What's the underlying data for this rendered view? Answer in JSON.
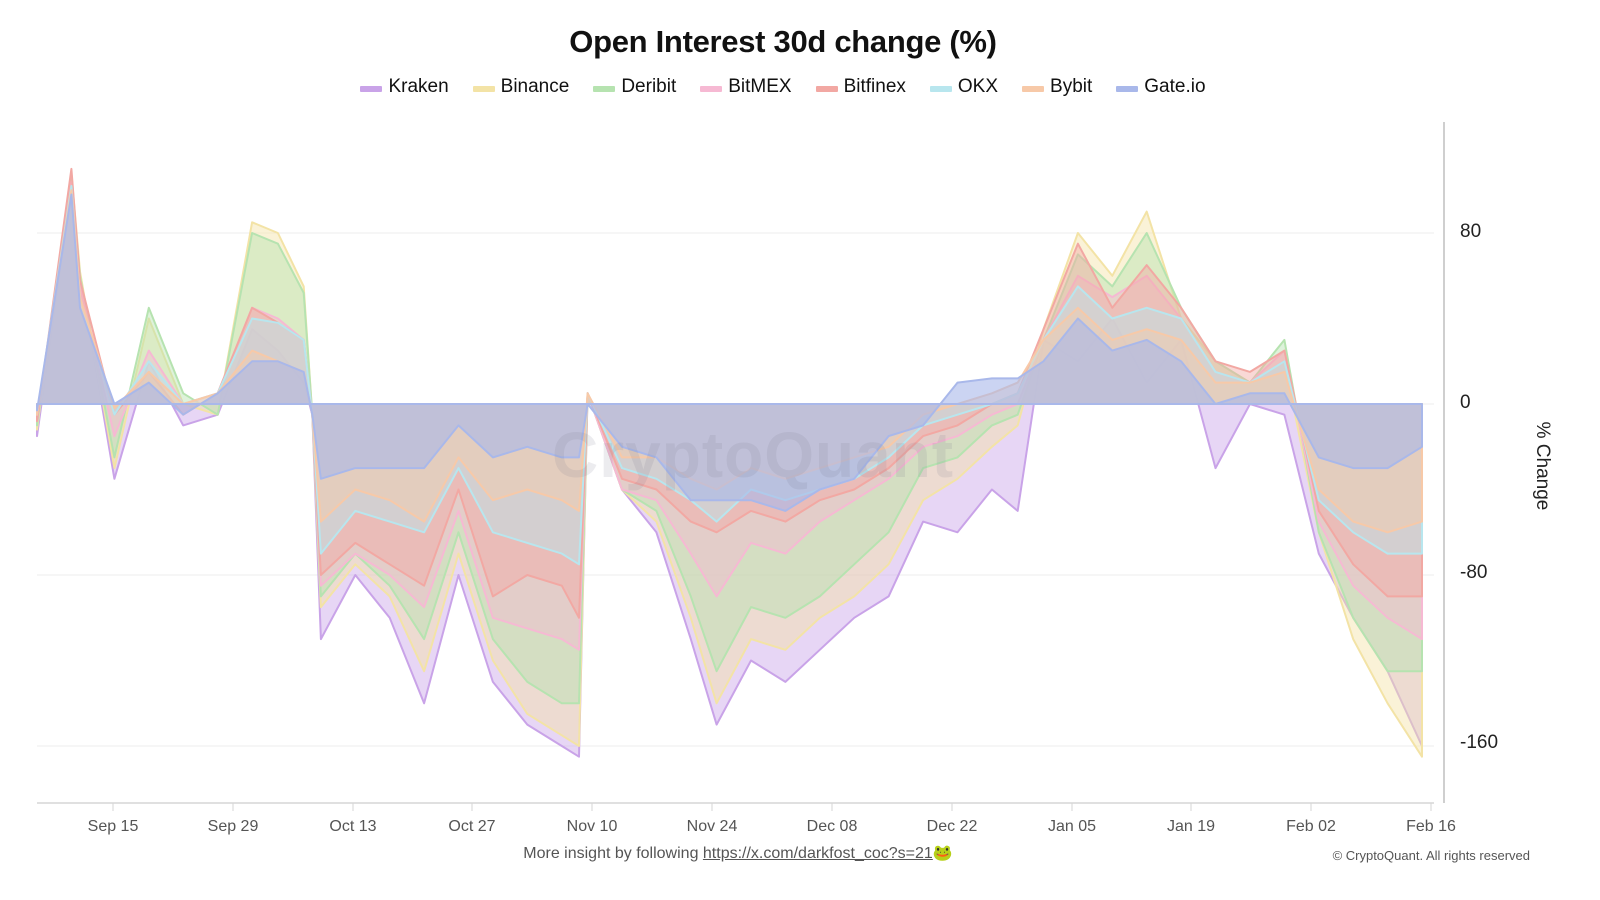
{
  "title": "Open Interest 30d change (%)",
  "legend": [
    {
      "label": "Kraken",
      "color": "#c9a3e8"
    },
    {
      "label": "Binance",
      "color": "#f3e3a6"
    },
    {
      "label": "Deribit",
      "color": "#b6e3b0"
    },
    {
      "label": "BitMEX",
      "color": "#f6b9d3"
    },
    {
      "label": "Bitfinex",
      "color": "#f2a8a3"
    },
    {
      "label": "OKX",
      "color": "#b8e6ee"
    },
    {
      "label": "Bybit",
      "color": "#f7c9a8"
    },
    {
      "label": "Gate.io",
      "color": "#a9b8ea"
    }
  ],
  "y_axis": {
    "label": "% Change",
    "ticks": [
      "80",
      "0",
      "-80",
      "-160"
    ]
  },
  "x_axis": {
    "ticks": [
      "Sep 15",
      "Sep 29",
      "Oct 13",
      "Oct 27",
      "Nov 10",
      "Nov 24",
      "Dec 08",
      "Dec 22",
      "Jan 05",
      "Jan 19",
      "Feb 02",
      "Feb 16"
    ]
  },
  "watermark": "CryptoQuant",
  "footer": {
    "text": "More insight by following ",
    "link": "https://x.com/darkfost_coc?s=21",
    "emoji": "🐸"
  },
  "copyright": "© CryptoQuant. All rights reserved",
  "chart_data": {
    "type": "area",
    "title": "Open Interest 30d change (%)",
    "xlabel": "",
    "ylabel": "% Change",
    "ylim": [
      -185,
      120
    ],
    "grid": true,
    "legend_position": "top",
    "x": [
      "Sep 07",
      "Sep 11",
      "Sep 12",
      "Sep 16",
      "Sep 20",
      "Sep 24",
      "Sep 28",
      "Oct 02",
      "Oct 05",
      "Oct 08",
      "Oct 09",
      "Oct 10",
      "Oct 14",
      "Oct 18",
      "Oct 22",
      "Oct 26",
      "Oct 30",
      "Nov 03",
      "Nov 07",
      "Nov 09",
      "Nov 10",
      "Nov 14",
      "Nov 18",
      "Nov 22",
      "Nov 25",
      "Nov 29",
      "Dec 03",
      "Dec 07",
      "Dec 11",
      "Dec 15",
      "Dec 19",
      "Dec 23",
      "Dec 27",
      "Dec 30",
      "Jan 02",
      "Jan 06",
      "Jan 10",
      "Jan 14",
      "Jan 18",
      "Jan 22",
      "Jan 26",
      "Jan 30",
      "Feb 03",
      "Feb 07",
      "Feb 11",
      "Feb 15"
    ],
    "series": [
      {
        "name": "Kraken",
        "values": [
          -15,
          100,
          60,
          -35,
          20,
          -10,
          -5,
          35,
          25,
          10,
          -5,
          -110,
          -80,
          -100,
          -140,
          -80,
          -130,
          -150,
          -160,
          -165,
          5,
          -40,
          -60,
          -110,
          -150,
          -120,
          -130,
          -115,
          -100,
          -90,
          -55,
          -60,
          -40,
          -50,
          30,
          20,
          40,
          10,
          30,
          -30,
          0,
          -5,
          -70,
          -100,
          -125,
          -160
        ]
      },
      {
        "name": "Binance",
        "values": [
          -12,
          108,
          62,
          -30,
          40,
          0,
          -5,
          85,
          80,
          55,
          -5,
          -95,
          -75,
          -90,
          -125,
          -70,
          -120,
          -145,
          -155,
          -160,
          5,
          -40,
          -55,
          -100,
          -140,
          -110,
          -115,
          -100,
          -90,
          -75,
          -45,
          -35,
          -20,
          -10,
          35,
          80,
          60,
          90,
          40,
          20,
          10,
          20,
          -60,
          -110,
          -140,
          -165
        ]
      },
      {
        "name": "Deribit",
        "values": [
          -10,
          105,
          60,
          -25,
          45,
          5,
          -5,
          80,
          75,
          52,
          -5,
          -90,
          -70,
          -85,
          -110,
          -60,
          -110,
          -130,
          -140,
          -140,
          5,
          -40,
          -50,
          -90,
          -125,
          -95,
          -100,
          -90,
          -75,
          -60,
          -30,
          -25,
          -10,
          -5,
          30,
          70,
          55,
          80,
          45,
          20,
          10,
          30,
          -60,
          -100,
          -125,
          -125
        ]
      },
      {
        "name": "BitMEX",
        "values": [
          -8,
          104,
          55,
          -15,
          25,
          0,
          5,
          45,
          40,
          30,
          -5,
          -85,
          -70,
          -80,
          -95,
          -50,
          -100,
          -105,
          -110,
          -115,
          5,
          -40,
          -45,
          -70,
          -90,
          -65,
          -70,
          -55,
          -45,
          -35,
          -20,
          -15,
          -5,
          0,
          30,
          60,
          50,
          60,
          40,
          15,
          10,
          25,
          -55,
          -85,
          -100,
          -110
        ]
      },
      {
        "name": "Bitfinex",
        "values": [
          -8,
          110,
          58,
          -5,
          15,
          -5,
          5,
          45,
          38,
          30,
          -5,
          -80,
          -65,
          -75,
          -85,
          -40,
          -90,
          -80,
          -85,
          -100,
          5,
          -35,
          -40,
          -55,
          -60,
          -50,
          -55,
          -45,
          -40,
          -30,
          -15,
          -10,
          0,
          5,
          35,
          75,
          45,
          65,
          45,
          20,
          15,
          25,
          -50,
          -75,
          -90,
          -90
        ]
      },
      {
        "name": "OKX",
        "values": [
          -5,
          102,
          50,
          -5,
          20,
          0,
          5,
          40,
          38,
          30,
          -5,
          -70,
          -50,
          -55,
          -60,
          -30,
          -60,
          -65,
          -70,
          -75,
          5,
          -30,
          -35,
          -45,
          -55,
          -40,
          -45,
          -40,
          -35,
          -25,
          -10,
          -5,
          0,
          5,
          30,
          55,
          40,
          45,
          40,
          15,
          10,
          20,
          -45,
          -60,
          -70,
          -70
        ]
      },
      {
        "name": "Bybit",
        "values": [
          -5,
          100,
          50,
          -2,
          15,
          0,
          5,
          25,
          20,
          15,
          -5,
          -55,
          -40,
          -45,
          -55,
          -25,
          -45,
          -40,
          -45,
          -50,
          5,
          -25,
          -25,
          -35,
          -40,
          -30,
          -35,
          -30,
          -25,
          -20,
          -5,
          0,
          5,
          10,
          30,
          45,
          30,
          35,
          30,
          10,
          10,
          15,
          -40,
          -55,
          -60,
          -55
        ]
      },
      {
        "name": "Gate.io",
        "values": [
          -3,
          98,
          45,
          0,
          10,
          -5,
          5,
          20,
          20,
          15,
          -5,
          -35,
          -30,
          -30,
          -30,
          -10,
          -25,
          -20,
          -25,
          -25,
          0,
          -20,
          -25,
          -45,
          -45,
          -45,
          -50,
          -40,
          -35,
          -15,
          -10,
          10,
          12,
          12,
          20,
          40,
          25,
          30,
          20,
          0,
          5,
          5,
          -25,
          -30,
          -30,
          -20
        ]
      }
    ]
  }
}
